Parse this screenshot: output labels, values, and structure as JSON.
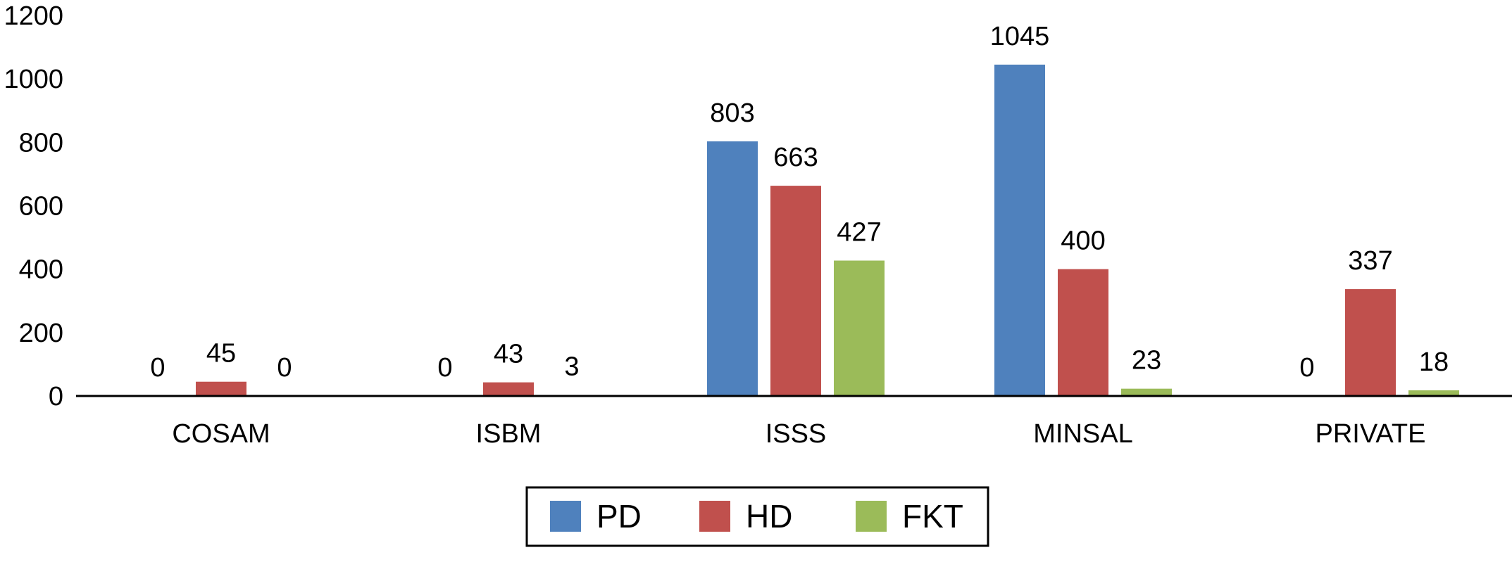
{
  "chart_data": {
    "type": "bar",
    "categories": [
      "COSAM",
      "ISBM",
      "ISSS",
      "MINSAL",
      "PRIVATE"
    ],
    "series": [
      {
        "name": "PD",
        "color": "#4f81bd",
        "values": [
          0,
          0,
          803,
          1045,
          0
        ]
      },
      {
        "name": "HD",
        "color": "#c0504d",
        "values": [
          45,
          43,
          663,
          400,
          337
        ]
      },
      {
        "name": "FKT",
        "color": "#9bbb59",
        "values": [
          0,
          3,
          427,
          23,
          18
        ]
      }
    ],
    "title": "",
    "xlabel": "",
    "ylabel": "",
    "ylim": [
      0,
      1200
    ],
    "yticks": [
      0,
      200,
      400,
      600,
      800,
      1000,
      1200
    ],
    "grid": false,
    "legend": "bottom-center"
  }
}
